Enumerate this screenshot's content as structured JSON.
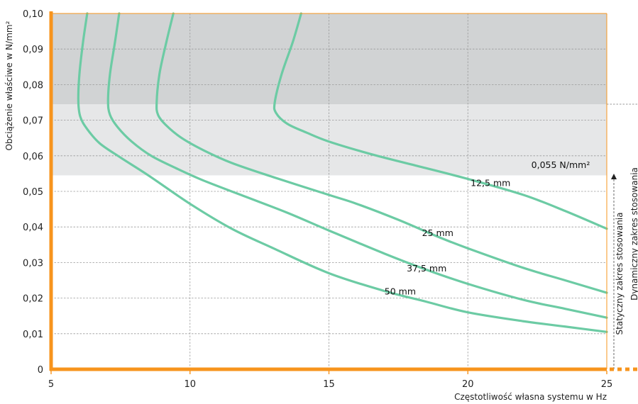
{
  "chart_data": {
    "type": "line",
    "xlabel": "Częstotliwość własna systemu w Hz",
    "ylabel": "Obciążenie właściwe w N/mm²",
    "xlim": [
      5,
      25
    ],
    "ylim": [
      0,
      0.1
    ],
    "x_ticks": [
      "5",
      "10",
      "15",
      "20",
      "25"
    ],
    "y_ticks": [
      "0",
      "0,01",
      "0,02",
      "0,03",
      "0,04",
      "0,05",
      "0,06",
      "0,07",
      "0,08",
      "0,09",
      "0,10"
    ],
    "grid": true,
    "colors": {
      "axis": "#f7941d",
      "curve": "#6ccba4",
      "band_dark": "#d1d3d4",
      "band_light": "#e6e7e8",
      "grid": "#9a9a9a"
    },
    "bands": [
      {
        "from": 0.0745,
        "to": 0.1,
        "color": "band_dark"
      },
      {
        "from": 0.0545,
        "to": 0.0745,
        "color": "band_light"
      }
    ],
    "annotations": {
      "threshold_label": "0,055 N/mm²",
      "static_range": "Statyczny zakres stosowania",
      "dynamic_range": "Dynamiczny zakres stosowania"
    },
    "series": [
      {
        "name": "12,5 mm",
        "points": [
          [
            14.0,
            0.1
          ],
          [
            13.7,
            0.092
          ],
          [
            13.3,
            0.083
          ],
          [
            13.05,
            0.075
          ],
          [
            13.1,
            0.072
          ],
          [
            13.5,
            0.069
          ],
          [
            14.2,
            0.0665
          ],
          [
            15.0,
            0.064
          ],
          [
            16.5,
            0.0605
          ],
          [
            18.0,
            0.0575
          ],
          [
            20.0,
            0.0535
          ],
          [
            22.0,
            0.049
          ],
          [
            23.5,
            0.0445
          ],
          [
            25.0,
            0.0395
          ]
        ],
        "label_at": [
          20.1,
          0.0515
        ]
      },
      {
        "name": "25 mm",
        "points": [
          [
            9.4,
            0.1
          ],
          [
            9.15,
            0.092
          ],
          [
            8.9,
            0.083
          ],
          [
            8.8,
            0.075
          ],
          [
            8.85,
            0.0715
          ],
          [
            9.15,
            0.0685
          ],
          [
            9.7,
            0.065
          ],
          [
            10.5,
            0.0615
          ],
          [
            11.5,
            0.058
          ],
          [
            13.0,
            0.054
          ],
          [
            15.0,
            0.049
          ],
          [
            16.0,
            0.0465
          ],
          [
            17.5,
            0.042
          ],
          [
            19.0,
            0.037
          ],
          [
            20.0,
            0.034
          ],
          [
            22.0,
            0.0285
          ],
          [
            23.5,
            0.025
          ],
          [
            25.0,
            0.0215
          ]
        ],
        "label_at": [
          18.35,
          0.0375
        ]
      },
      {
        "name": "37,5 mm",
        "points": [
          [
            7.45,
            0.1
          ],
          [
            7.3,
            0.092
          ],
          [
            7.12,
            0.083
          ],
          [
            7.05,
            0.0755
          ],
          [
            7.12,
            0.0715
          ],
          [
            7.4,
            0.068
          ],
          [
            7.9,
            0.064
          ],
          [
            8.6,
            0.06
          ],
          [
            9.5,
            0.0565
          ],
          [
            10.5,
            0.053
          ],
          [
            12.0,
            0.0485
          ],
          [
            13.5,
            0.044
          ],
          [
            15.0,
            0.039
          ],
          [
            17.0,
            0.0325
          ],
          [
            18.5,
            0.028
          ],
          [
            20.0,
            0.024
          ],
          [
            22.0,
            0.0195
          ],
          [
            23.5,
            0.017
          ],
          [
            25.0,
            0.0145
          ]
        ],
        "label_at": [
          17.8,
          0.0275
        ]
      },
      {
        "name": "50 mm",
        "points": [
          [
            6.3,
            0.1
          ],
          [
            6.15,
            0.092
          ],
          [
            6.02,
            0.083
          ],
          [
            5.98,
            0.0755
          ],
          [
            6.05,
            0.071
          ],
          [
            6.3,
            0.0675
          ],
          [
            6.75,
            0.0635
          ],
          [
            7.5,
            0.0595
          ],
          [
            8.5,
            0.0545
          ],
          [
            10.0,
            0.0465
          ],
          [
            11.5,
            0.0395
          ],
          [
            13.0,
            0.034
          ],
          [
            15.0,
            0.027
          ],
          [
            17.0,
            0.022
          ],
          [
            18.5,
            0.019
          ],
          [
            20.0,
            0.016
          ],
          [
            22.0,
            0.0135
          ],
          [
            23.5,
            0.012
          ],
          [
            25.0,
            0.0105
          ]
        ],
        "label_at": [
          17.0,
          0.021
        ]
      }
    ]
  }
}
